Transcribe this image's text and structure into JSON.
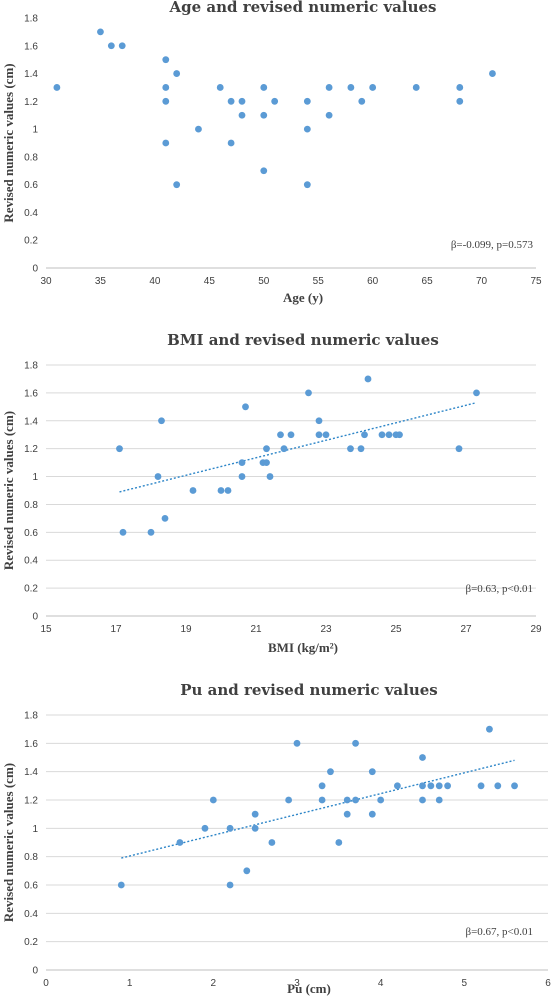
{
  "chart_data": [
    {
      "type": "scatter",
      "title": "Age and revised numeric values",
      "xlabel": "Age (y)",
      "ylabel": "Revised numeric values (cm)",
      "xlim": [
        30,
        75
      ],
      "ylim": [
        0,
        1.8
      ],
      "xticks": [
        30,
        35,
        40,
        45,
        50,
        55,
        60,
        65,
        70,
        75
      ],
      "yticks": [
        0,
        0.2,
        0.4,
        0.6,
        0.8,
        1,
        1.2,
        1.4,
        1.6,
        1.8
      ],
      "grid": false,
      "annotation": "β=-0.099, p=0.573",
      "trendline": null,
      "points": [
        [
          31,
          1.3
        ],
        [
          35,
          1.7
        ],
        [
          36,
          1.6
        ],
        [
          37,
          1.6
        ],
        [
          41,
          1.5
        ],
        [
          41,
          1.3
        ],
        [
          41,
          1.2
        ],
        [
          41,
          0.9
        ],
        [
          42,
          1.4
        ],
        [
          42,
          0.6
        ],
        [
          44,
          1.0
        ],
        [
          46,
          1.3
        ],
        [
          47,
          1.2
        ],
        [
          47,
          0.9
        ],
        [
          48,
          1.2
        ],
        [
          48,
          1.1
        ],
        [
          50,
          1.3
        ],
        [
          50,
          1.1
        ],
        [
          50,
          0.7
        ],
        [
          51,
          1.2
        ],
        [
          54,
          1.2
        ],
        [
          54,
          1.0
        ],
        [
          54,
          0.6
        ],
        [
          56,
          1.3
        ],
        [
          56,
          1.1
        ],
        [
          58,
          1.3
        ],
        [
          59,
          1.2
        ],
        [
          60,
          1.3
        ],
        [
          64,
          1.3
        ],
        [
          68,
          1.3
        ],
        [
          68,
          1.2
        ],
        [
          71,
          1.4
        ]
      ]
    },
    {
      "type": "scatter",
      "title": "BMI and revised numeric values",
      "xlabel": "BMI (kg/m²)",
      "ylabel": "Revised numeric values (cm)",
      "xlim": [
        15,
        29
      ],
      "ylim": [
        0,
        1.8
      ],
      "xticks": [
        15,
        17,
        19,
        21,
        23,
        25,
        27,
        29
      ],
      "yticks": [
        0,
        0.2,
        0.4,
        0.6,
        0.8,
        1,
        1.2,
        1.4,
        1.6,
        1.8
      ],
      "grid": true,
      "annotation": "β=0.63, p<0.01",
      "trendline": {
        "x": [
          17.1,
          27.3
        ],
        "y": [
          0.89,
          1.53
        ]
      },
      "points": [
        [
          17.1,
          1.2
        ],
        [
          17.2,
          0.6
        ],
        [
          18.0,
          0.6
        ],
        [
          18.2,
          1.0
        ],
        [
          18.3,
          1.4
        ],
        [
          18.4,
          0.7
        ],
        [
          19.2,
          0.9
        ],
        [
          20.0,
          0.9
        ],
        [
          20.2,
          0.9
        ],
        [
          20.6,
          1.0
        ],
        [
          20.6,
          1.1
        ],
        [
          20.7,
          1.5
        ],
        [
          21.2,
          1.1
        ],
        [
          21.3,
          1.1
        ],
        [
          21.3,
          1.2
        ],
        [
          21.4,
          1.0
        ],
        [
          21.7,
          1.3
        ],
        [
          21.8,
          1.2
        ],
        [
          22.0,
          1.3
        ],
        [
          22.5,
          1.6
        ],
        [
          22.8,
          1.4
        ],
        [
          22.8,
          1.3
        ],
        [
          23.0,
          1.3
        ],
        [
          23.7,
          1.2
        ],
        [
          24.0,
          1.2
        ],
        [
          24.1,
          1.3
        ],
        [
          24.2,
          1.7
        ],
        [
          24.6,
          1.3
        ],
        [
          24.8,
          1.3
        ],
        [
          25.0,
          1.3
        ],
        [
          25.1,
          1.3
        ],
        [
          26.8,
          1.2
        ],
        [
          27.3,
          1.6
        ]
      ]
    },
    {
      "type": "scatter",
      "title": "Pu and revised numeric values",
      "xlabel": "Pu (cm)",
      "ylabel": "Revised numeric values (cm)",
      "xlim": [
        0,
        6
      ],
      "ylim": [
        0,
        1.8
      ],
      "xticks": [
        0,
        1,
        2,
        3,
        4,
        5,
        6
      ],
      "yticks": [
        0,
        0.2,
        0.4,
        0.6,
        0.8,
        1,
        1.2,
        1.4,
        1.6,
        1.8
      ],
      "grid": true,
      "annotation": "β=0.67, p<0.01",
      "trendline": {
        "x": [
          0.9,
          5.6
        ],
        "y": [
          0.79,
          1.48
        ]
      },
      "points": [
        [
          0.9,
          0.6
        ],
        [
          1.6,
          0.9
        ],
        [
          1.9,
          1.0
        ],
        [
          2.0,
          1.2
        ],
        [
          2.2,
          1.0
        ],
        [
          2.2,
          0.6
        ],
        [
          2.4,
          0.7
        ],
        [
          2.5,
          1.1
        ],
        [
          2.5,
          1.0
        ],
        [
          2.7,
          0.9
        ],
        [
          2.9,
          1.2
        ],
        [
          3.0,
          1.6
        ],
        [
          3.3,
          1.3
        ],
        [
          3.3,
          1.2
        ],
        [
          3.4,
          1.4
        ],
        [
          3.5,
          0.9
        ],
        [
          3.6,
          1.2
        ],
        [
          3.6,
          1.1
        ],
        [
          3.7,
          1.6
        ],
        [
          3.7,
          1.2
        ],
        [
          3.9,
          1.4
        ],
        [
          3.9,
          1.1
        ],
        [
          4.0,
          1.2
        ],
        [
          4.2,
          1.3
        ],
        [
          4.5,
          1.5
        ],
        [
          4.5,
          1.3
        ],
        [
          4.5,
          1.2
        ],
        [
          4.6,
          1.3
        ],
        [
          4.7,
          1.3
        ],
        [
          4.7,
          1.2
        ],
        [
          4.8,
          1.3
        ],
        [
          5.2,
          1.3
        ],
        [
          5.3,
          1.7
        ],
        [
          5.4,
          1.3
        ],
        [
          5.6,
          1.3
        ]
      ]
    }
  ]
}
